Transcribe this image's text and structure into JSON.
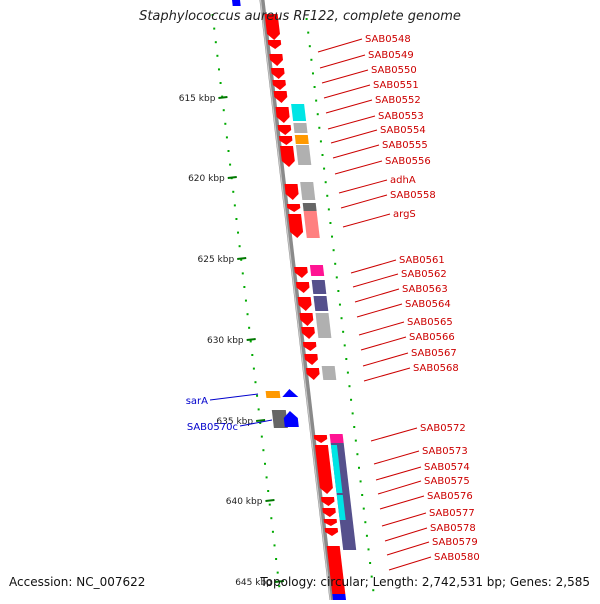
{
  "title": "Staphylococcus aureus RF122, complete genome",
  "footer": {
    "accession": "Accession: NC_007622",
    "summary": "Topology: circular; Length: 2,742,531 bp; Genes: 2,585"
  },
  "colors": {
    "forward_cds": "#ff0000",
    "axis": "#888888",
    "tick": "#00aa00",
    "label_right": "#cc0000",
    "label_left": "#0000cc",
    "cyan": "#00e5e5",
    "gray": "#b0b0b0",
    "dark_gray": "#666666",
    "orange": "#ff9900",
    "magenta": "#ff1493",
    "slate": "#55508c",
    "pink": "#ff8080",
    "blue": "#0000ff"
  },
  "scale": {
    "ticks": [
      {
        "label": "615 kbp",
        "kbp": 615
      },
      {
        "label": "620 kbp",
        "kbp": 620
      },
      {
        "label": "625 kbp",
        "kbp": 625
      },
      {
        "label": "630 kbp",
        "kbp": 630
      },
      {
        "label": "635 kbp",
        "kbp": 635
      },
      {
        "label": "640 kbp",
        "kbp": 640
      },
      {
        "label": "645 kbp",
        "kbp": 645
      }
    ]
  },
  "genes_right": [
    "SAB0548",
    "SAB0549",
    "SAB0550",
    "SAB0551",
    "SAB0552",
    "SAB0553",
    "SAB0554",
    "SAB0555",
    "SAB0556",
    "adhA",
    "SAB0558",
    "argS",
    "SAB0561",
    "SAB0562",
    "SAB0563",
    "SAB0564",
    "SAB0565",
    "SAB0566",
    "SAB0567",
    "SAB0568",
    "SAB0572",
    "SAB0573",
    "SAB0574",
    "SAB0575",
    "SAB0576",
    "SAB0577",
    "SAB0578",
    "SAB0579",
    "SAB0580"
  ],
  "genes_left": [
    "sarA",
    "SAB0570c"
  ]
}
